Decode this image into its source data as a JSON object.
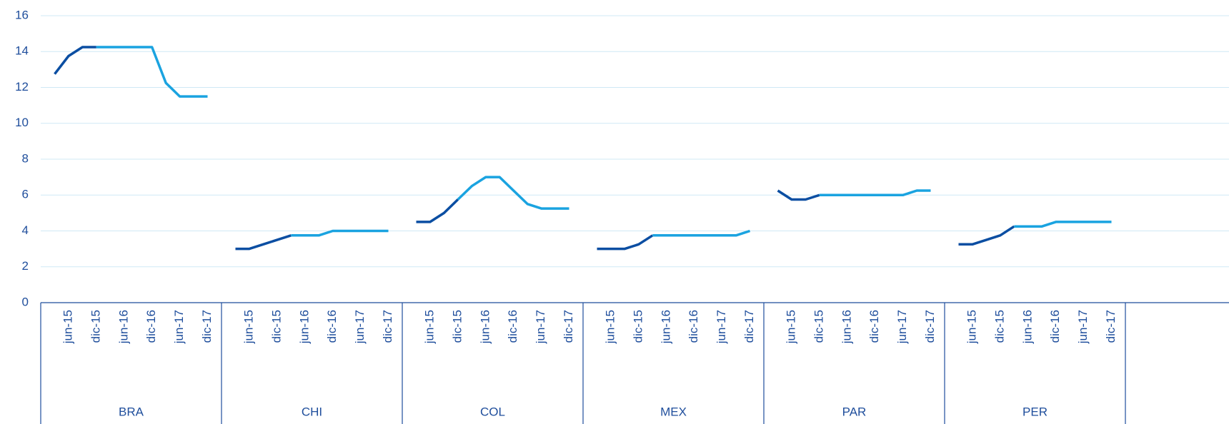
{
  "chart_data": {
    "type": "line",
    "groups": [
      "BRA",
      "CHI",
      "COL",
      "MEX",
      "PAR",
      "PER"
    ],
    "categories": [
      null,
      "jun-15",
      null,
      "dic-15",
      null,
      "jun-16",
      null,
      "dic-16",
      null,
      "jun-17",
      null,
      "dic-17",
      null,
      "jun-15",
      null,
      "dic-15",
      null,
      "jun-16",
      null,
      "dic-16",
      null,
      "jun-17",
      null,
      "dic-17",
      null,
      "jun-15",
      null,
      "dic-15",
      null,
      "jun-16",
      null,
      "dic-16",
      null,
      "jun-17",
      null,
      "dic-17",
      null,
      "jun-15",
      null,
      "dic-15",
      null,
      "jun-16",
      null,
      "dic-16",
      null,
      "jun-17",
      null,
      "dic-17",
      null,
      "jun-15",
      null,
      "dic-15",
      null,
      "jun-16",
      null,
      "dic-16",
      null,
      "jun-17",
      null,
      "dic-17",
      null,
      "jun-15",
      null,
      "dic-15",
      null,
      "jun-16",
      null,
      "dic-16",
      null,
      "jun-17",
      null,
      "dic-17"
    ],
    "series": [
      {
        "color": "#0b4ea2",
        "values": [
          12.75,
          13.75,
          14.25,
          14.25,
          null,
          null,
          null,
          null,
          null,
          null,
          null,
          null,
          3,
          3,
          3.25,
          3.5,
          3.75,
          null,
          null,
          null,
          null,
          null,
          null,
          null,
          4.5,
          4.5,
          5,
          5.75,
          null,
          null,
          null,
          null,
          null,
          null,
          null,
          null,
          3,
          3,
          3,
          3.25,
          3.75,
          null,
          null,
          null,
          null,
          null,
          null,
          null,
          6.25,
          5.75,
          5.75,
          6,
          null,
          null,
          null,
          null,
          null,
          null,
          null,
          null,
          3.25,
          3.25,
          3.5,
          3.75,
          4.25,
          null,
          null,
          null,
          null,
          null,
          null,
          null
        ]
      },
      {
        "color": "#1aa3e0",
        "values": [
          null,
          null,
          null,
          14.25,
          14.25,
          14.25,
          14.25,
          14.25,
          12.25,
          11.5,
          11.5,
          11.5,
          null,
          null,
          null,
          null,
          3.75,
          3.75,
          3.75,
          4,
          4,
          4,
          4,
          4,
          null,
          null,
          null,
          5.75,
          6.5,
          7,
          7,
          6.25,
          5.5,
          5.25,
          5.25,
          5.25,
          null,
          null,
          null,
          null,
          3.75,
          3.75,
          3.75,
          3.75,
          3.75,
          3.75,
          3.75,
          4,
          null,
          null,
          null,
          6,
          6,
          6,
          6,
          6,
          6,
          6,
          6.25,
          6.25,
          null,
          null,
          null,
          null,
          4.25,
          4.25,
          4.25,
          4.5,
          4.5,
          4.5,
          4.5,
          4.5
        ]
      }
    ],
    "ylim": [
      0,
      16
    ],
    "yticks": [
      0,
      2,
      4,
      6,
      8,
      10,
      12,
      14,
      16
    ],
    "grid": true
  }
}
